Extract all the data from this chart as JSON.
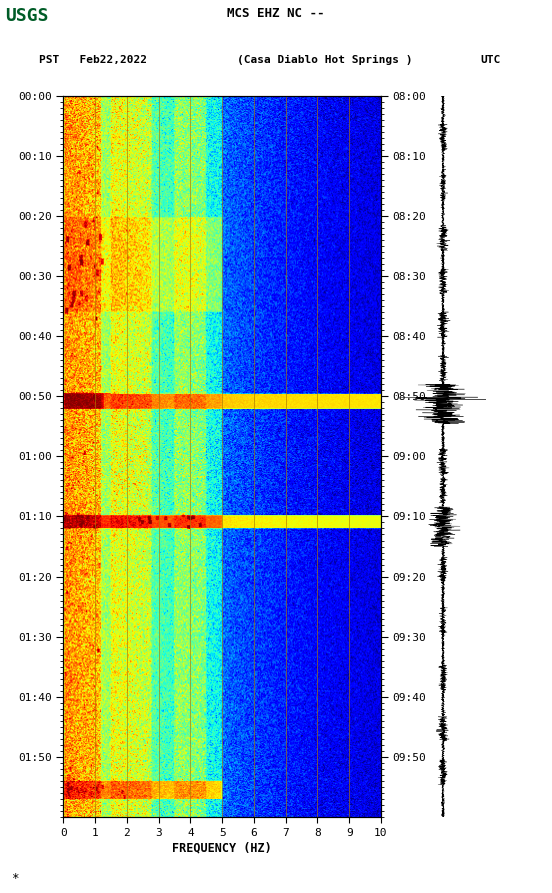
{
  "title_line1": "MCS EHZ NC --",
  "title_line2_left": "PST   Feb22,2022",
  "title_line2_center": "(Casa Diablo Hot Springs )",
  "title_line2_right": "UTC",
  "left_time_labels": [
    "00:00",
    "00:10",
    "00:20",
    "00:30",
    "00:40",
    "00:50",
    "01:00",
    "01:10",
    "01:20",
    "01:30",
    "01:40",
    "01:50"
  ],
  "right_time_labels": [
    "08:00",
    "08:10",
    "08:20",
    "08:30",
    "08:40",
    "08:50",
    "09:00",
    "09:10",
    "09:20",
    "09:30",
    "09:40",
    "09:50"
  ],
  "freq_labels": [
    "0",
    "1",
    "2",
    "3",
    "4",
    "5",
    "6",
    "7",
    "8",
    "9",
    "10"
  ],
  "freq_xlabel": "FREQUENCY (HZ)",
  "freq_min": 0,
  "freq_max": 10,
  "n_time_steps": 720,
  "n_freq_steps": 600,
  "vertical_lines_freq": [
    1,
    2,
    3,
    4,
    5,
    6,
    7,
    8,
    9
  ],
  "vertical_line_color": "#AA7700",
  "usgs_green": "#005C27",
  "figure_bg": "#ffffff"
}
